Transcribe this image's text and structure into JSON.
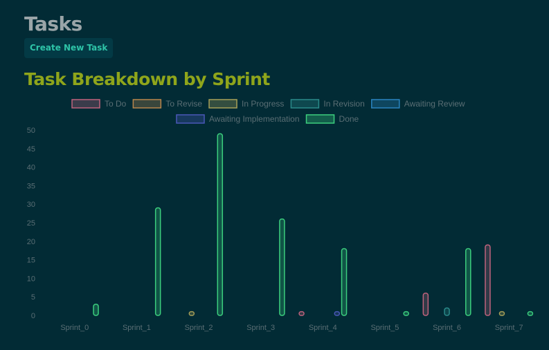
{
  "header": {
    "title": "Tasks",
    "create_button_label": "Create New Task"
  },
  "chart_data": {
    "type": "bar",
    "title": "Task Breakdown by Sprint",
    "categories": [
      "Sprint_0",
      "Sprint_1",
      "Sprint_2",
      "Sprint_3",
      "Sprint_4",
      "Sprint_5",
      "Sprint_6",
      "Sprint_7"
    ],
    "ylim": [
      0,
      50
    ],
    "yticks": [
      0,
      5,
      10,
      15,
      20,
      25,
      30,
      35,
      40,
      45,
      50
    ],
    "legend_position": "top",
    "grid": false,
    "series": [
      {
        "name": "To Do",
        "color": "#c0637d",
        "values": [
          0,
          0,
          0,
          0,
          1,
          0,
          6,
          19
        ]
      },
      {
        "name": "To Revise",
        "color": "#b8864c",
        "values": [
          0,
          0,
          0,
          0,
          0,
          0,
          0,
          0
        ]
      },
      {
        "name": "In Progress",
        "color": "#a8a058",
        "values": [
          0,
          0,
          1,
          0,
          0,
          0,
          0,
          1
        ]
      },
      {
        "name": "In Revision",
        "color": "#2a8a8a",
        "values": [
          0,
          0,
          0,
          0,
          0,
          0,
          2,
          0
        ]
      },
      {
        "name": "Awaiting Review",
        "color": "#2a84c0",
        "values": [
          0,
          0,
          0,
          0,
          0,
          0,
          0,
          0
        ]
      },
      {
        "name": "Awaiting Implementation",
        "color": "#4a58b8",
        "values": [
          0,
          0,
          0,
          0,
          1,
          0,
          0,
          0
        ]
      },
      {
        "name": "Done",
        "color": "#3ccf7e",
        "values": [
          3,
          29,
          49,
          26,
          18,
          1,
          18,
          1
        ]
      }
    ]
  }
}
